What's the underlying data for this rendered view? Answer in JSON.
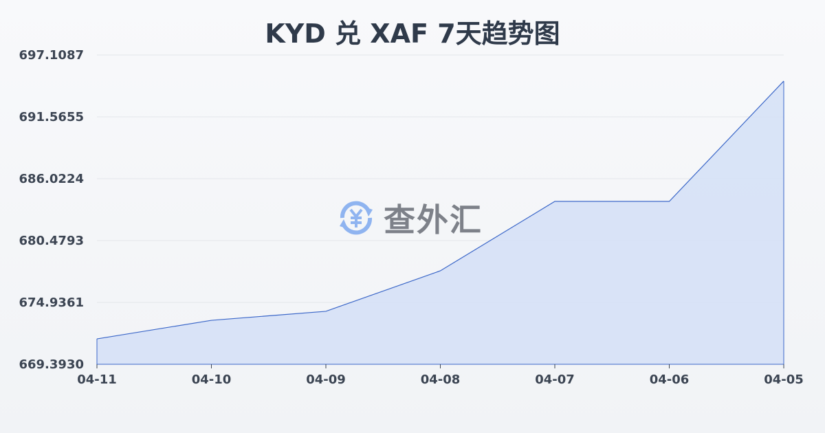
{
  "chart_data": {
    "type": "area",
    "title": "KYD 兑 XAF 7天趋势图",
    "categories": [
      "04-11",
      "04-10",
      "04-09",
      "04-08",
      "04-07",
      "04-06",
      "04-05"
    ],
    "values": [
      671.67,
      673.33,
      674.14,
      677.77,
      683.99,
      683.99,
      694.77
    ],
    "yticks": [
      "669.3930",
      "674.9361",
      "680.4793",
      "686.0224",
      "691.5655",
      "697.1087"
    ],
    "ylim": [
      669.393,
      697.1087
    ],
    "grid": true,
    "line_color": "#3a66c8",
    "fill_color": "#d6e1f6"
  },
  "watermark": {
    "text": "查外汇",
    "icon": "yen-exchange-icon",
    "icon_color": "#8fb4f0"
  }
}
